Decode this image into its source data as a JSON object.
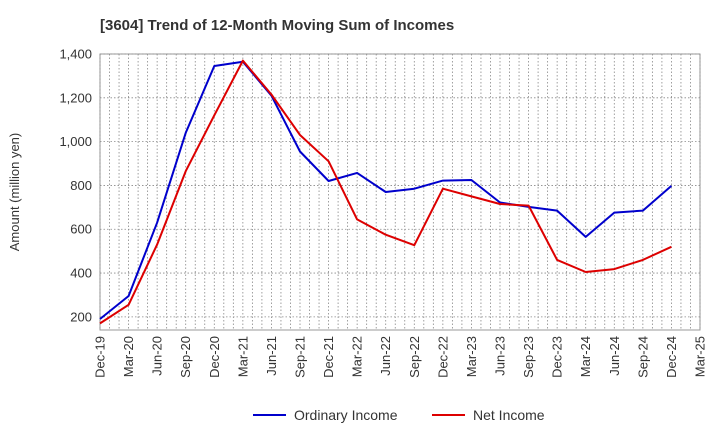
{
  "chart_data": {
    "type": "line",
    "title": "[3604]  Trend of 12-Month Moving Sum of Incomes",
    "ylabel": "Amount (million yen)",
    "xlabel": "",
    "ylim": [
      140,
      1400
    ],
    "yticks": [
      200,
      400,
      600,
      800,
      "1,000",
      "1,200",
      "1,400"
    ],
    "ytick_values": [
      200,
      400,
      600,
      800,
      1000,
      1200,
      1400
    ],
    "categories": [
      "Dec-19",
      "Mar-20",
      "Jun-20",
      "Sep-20",
      "Dec-20",
      "Mar-21",
      "Jun-21",
      "Sep-21",
      "Dec-21",
      "Mar-22",
      "Jun-22",
      "Sep-22",
      "Dec-22",
      "Mar-23",
      "Jun-23",
      "Sep-23",
      "Dec-23",
      "Mar-24",
      "Jun-24",
      "Sep-24",
      "Dec-24",
      "Mar-25"
    ],
    "grid": true,
    "legend_position": "bottom",
    "series": [
      {
        "name": "Ordinary Income",
        "color": "#0000cc",
        "values": [
          190,
          295,
          630,
          1040,
          1345,
          1365,
          1210,
          955,
          820,
          857,
          770,
          785,
          822,
          825,
          722,
          702,
          685,
          565,
          676,
          685,
          798,
          null
        ]
      },
      {
        "name": "Net Income",
        "color": "#dd0000",
        "values": [
          170,
          255,
          530,
          865,
          1120,
          1370,
          1215,
          1030,
          910,
          645,
          575,
          527,
          785,
          750,
          715,
          708,
          460,
          405,
          418,
          460,
          520,
          null
        ]
      }
    ]
  }
}
